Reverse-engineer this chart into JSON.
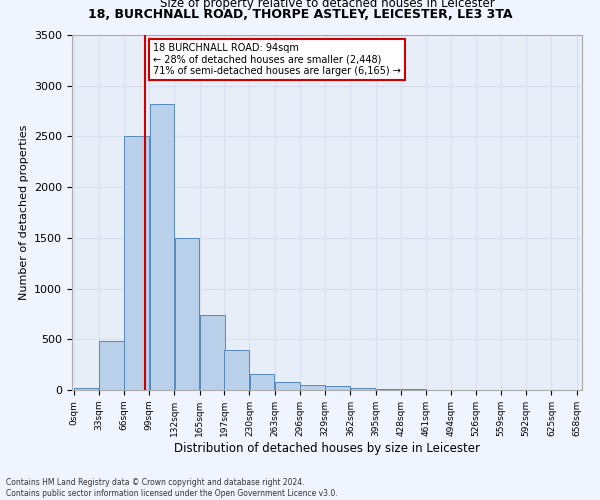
{
  "title1": "18, BURCHNALL ROAD, THORPE ASTLEY, LEICESTER, LE3 3TA",
  "title2": "Size of property relative to detached houses in Leicester",
  "xlabel": "Distribution of detached houses by size in Leicester",
  "ylabel": "Number of detached properties",
  "bar_left_edges": [
    0,
    33,
    66,
    99,
    132,
    165,
    197,
    230,
    263,
    296,
    329,
    362,
    395,
    428,
    461,
    494,
    526,
    559,
    592,
    625
  ],
  "bar_heights": [
    20,
    480,
    2500,
    2820,
    1500,
    740,
    390,
    155,
    75,
    50,
    40,
    20,
    10,
    5,
    3,
    2,
    1,
    0,
    0,
    0
  ],
  "bin_width": 33,
  "bar_color": "#b8d0ea",
  "bar_edge_color": "#5588bb",
  "property_size": 94,
  "vline_color": "#cc0000",
  "annotation_text": "18 BURCHNALL ROAD: 94sqm\n← 28% of detached houses are smaller (2,448)\n71% of semi-detached houses are larger (6,165) →",
  "annotation_box_color": "#ffffff",
  "annotation_box_edge": "#cc0000",
  "ylim": [
    0,
    3500
  ],
  "yticks": [
    0,
    500,
    1000,
    1500,
    2000,
    2500,
    3000,
    3500
  ],
  "xtick_labels": [
    "0sqm",
    "33sqm",
    "66sqm",
    "99sqm",
    "132sqm",
    "165sqm",
    "197sqm",
    "230sqm",
    "263sqm",
    "296sqm",
    "329sqm",
    "362sqm",
    "395sqm",
    "428sqm",
    "461sqm",
    "494sqm",
    "526sqm",
    "559sqm",
    "592sqm",
    "625sqm",
    "658sqm"
  ],
  "grid_color": "#d8dff0",
  "bg_color": "#e8eef8",
  "fig_bg_color": "#f0f4ff",
  "footnote1": "Contains HM Land Registry data © Crown copyright and database right 2024.",
  "footnote2": "Contains public sector information licensed under the Open Government Licence v3.0."
}
